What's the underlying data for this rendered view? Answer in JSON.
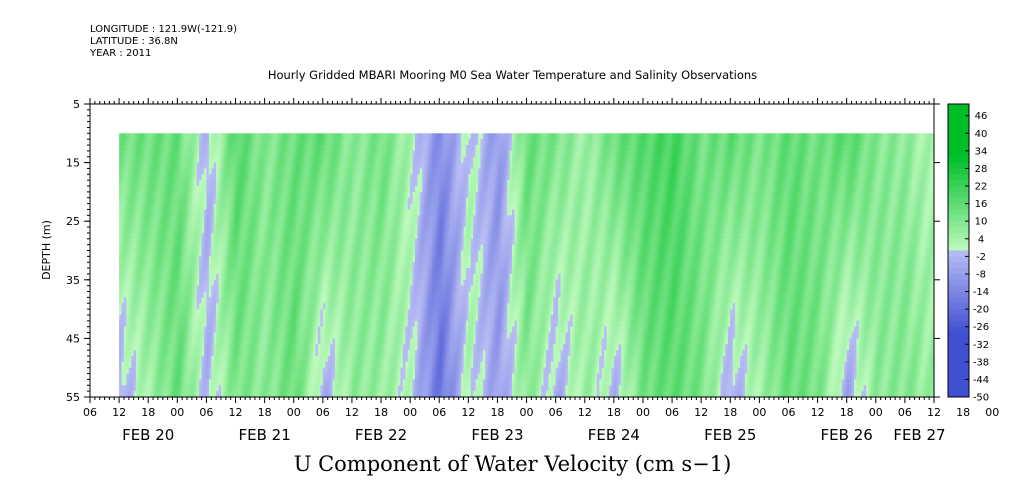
{
  "meta": {
    "longitude": "LONGITUDE : 121.9W(-121.9)",
    "latitude": "LATITUDE : 36.8N",
    "year": "YEAR : 2011"
  },
  "chart_data": {
    "type": "heatmap",
    "title": "Hourly Gridded MBARI Mooring M0 Sea Water Temperature and Salinity Observations",
    "subtitle": "U Component of Water Velocity (cm s−1)",
    "ylabel": "DEPTH (m)",
    "xlabel": "",
    "ylim": [
      55,
      5
    ],
    "y_ticks": [
      "5",
      "15",
      "25",
      "35",
      "45",
      "55"
    ],
    "x_range_hours": [
      0,
      174
    ],
    "x_hour_labels": [
      "06",
      "12",
      "18",
      "00",
      "06",
      "12",
      "18",
      "00",
      "06",
      "12",
      "18",
      "00",
      "06",
      "12",
      "18",
      "00",
      "06",
      "12",
      "18",
      "00",
      "06",
      "12",
      "18",
      "00",
      "06",
      "12",
      "18",
      "00",
      "06",
      "12",
      "18",
      "00",
      "06"
    ],
    "date_labels": [
      "FEB 20",
      "FEB 21",
      "FEB 22",
      "FEB 23",
      "FEB 24",
      "FEB 25",
      "FEB 26",
      "FEB 27"
    ],
    "data_depth_range": [
      10,
      55
    ],
    "data_start_label": "12",
    "colorbar": {
      "min": -50,
      "max": 50,
      "labels": [
        "46",
        "40",
        "34",
        "28",
        "22",
        "16",
        "10",
        "4",
        "-2",
        "-8",
        "-14",
        "-20",
        "-26",
        "-32",
        "-38",
        "-44",
        "-50"
      ],
      "negative_color": "#4a5fd0",
      "positive_color": "#00c040"
    },
    "profiles": {
      "description_hours": [
        6,
        18,
        24,
        30,
        36,
        42,
        48,
        54,
        60,
        66,
        72,
        78,
        84,
        90,
        96,
        102,
        108,
        114,
        120,
        126,
        132,
        138,
        144,
        150,
        156,
        162,
        168,
        172
      ],
      "surface_values": [
        16,
        18,
        -4,
        22,
        12,
        18,
        20,
        10,
        16,
        4,
        -16,
        2,
        -12,
        18,
        14,
        6,
        18,
        22,
        26,
        16,
        20,
        14,
        20,
        16,
        22,
        12,
        10,
        4
      ],
      "bottom_values": [
        -6,
        18,
        -4,
        14,
        10,
        18,
        -6,
        10,
        8,
        0,
        -24,
        4,
        -10,
        12,
        -6,
        8,
        -4,
        16,
        20,
        14,
        -6,
        6,
        18,
        14,
        -8,
        10,
        12,
        8
      ]
    }
  }
}
